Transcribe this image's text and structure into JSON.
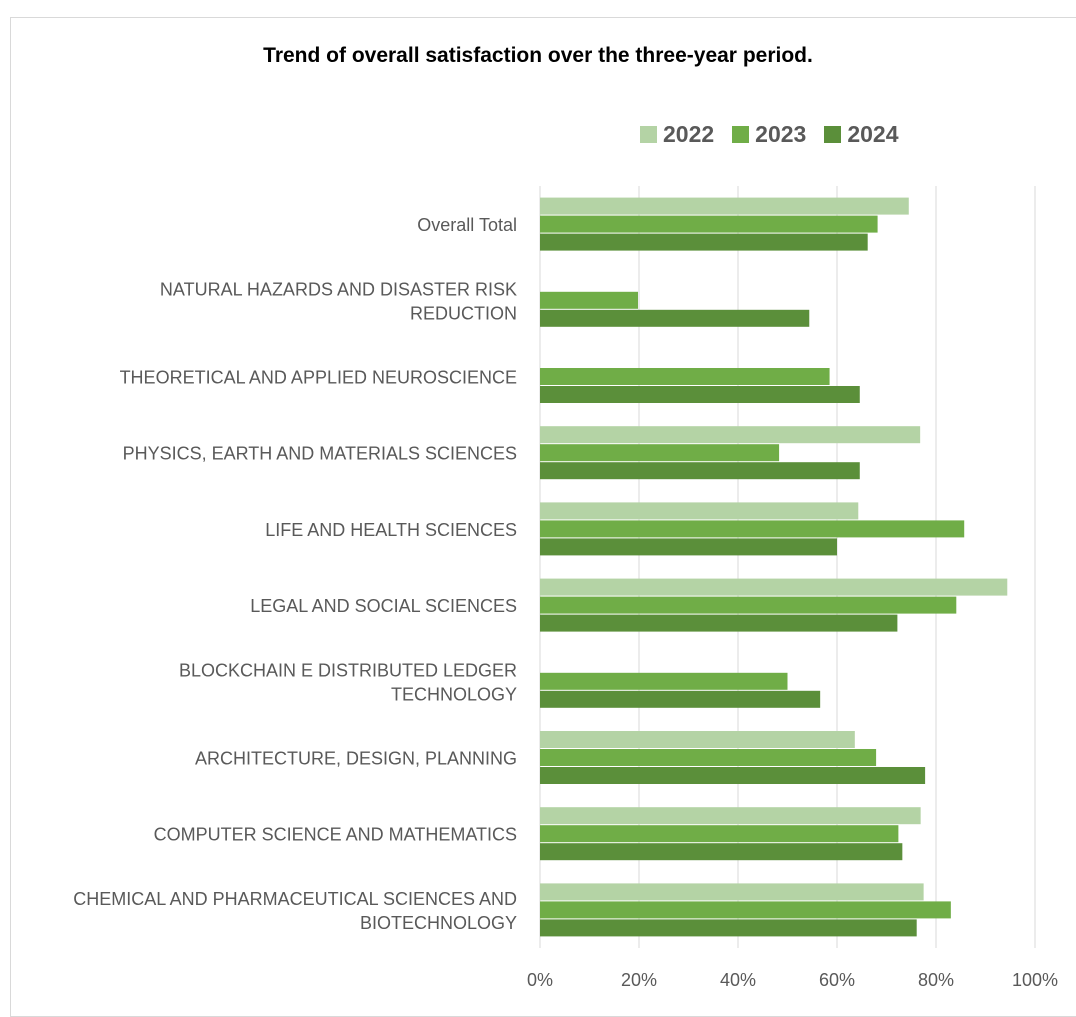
{
  "chart_data": {
    "type": "bar",
    "orientation": "horizontal",
    "title": "Trend of overall satisfaction over the three-year period.",
    "xlabel": "",
    "ylabel": "",
    "xlim": [
      0,
      100
    ],
    "x_ticks": [
      "0%",
      "20%",
      "40%",
      "60%",
      "80%",
      "100%"
    ],
    "grid": true,
    "legend_position": "top-right",
    "categories": [
      "Overall Total",
      "NATURAL HAZARDS AND DISASTER RISK REDUCTION",
      "THEORETICAL AND APPLIED NEUROSCIENCE",
      "PHYSICS, EARTH AND MATERIALS SCIENCES",
      "LIFE AND HEALTH SCIENCES",
      "LEGAL AND SOCIAL SCIENCES",
      "BLOCKCHAIN E DISTRIBUTED LEDGER TECHNOLOGY",
      "ARCHITECTURE, DESIGN, PLANNING",
      "COMPUTER SCIENCE AND MATHEMATICS",
      "CHEMICAL AND PHARMACEUTICAL SCIENCES AND BIOTECHNOLOGY"
    ],
    "category_lines": [
      [
        "Overall Total"
      ],
      [
        "NATURAL HAZARDS AND DISASTER RISK",
        "REDUCTION"
      ],
      [
        "THEORETICAL AND APPLIED NEUROSCIENCE"
      ],
      [
        "PHYSICS, EARTH AND MATERIALS SCIENCES"
      ],
      [
        "LIFE AND HEALTH SCIENCES"
      ],
      [
        "LEGAL AND SOCIAL SCIENCES"
      ],
      [
        "BLOCKCHAIN E DISTRIBUTED LEDGER",
        "TECHNOLOGY"
      ],
      [
        "ARCHITECTURE, DESIGN, PLANNING"
      ],
      [
        "COMPUTER SCIENCE AND MATHEMATICS"
      ],
      [
        "CHEMICAL AND PHARMACEUTICAL SCIENCES AND",
        "BIOTECHNOLOGY"
      ]
    ],
    "series": [
      {
        "name": "2022",
        "color": "#b4d3a5",
        "values": [
          74.5,
          null,
          null,
          76.8,
          64.3,
          94.4,
          null,
          63.6,
          76.9,
          77.5
        ]
      },
      {
        "name": "2023",
        "color": "#70ad47",
        "values": [
          68.2,
          19.8,
          58.5,
          48.3,
          85.7,
          84.1,
          50.0,
          67.9,
          72.4,
          83.0
        ]
      },
      {
        "name": "2024",
        "color": "#5b8f3a",
        "values": [
          66.2,
          54.4,
          64.6,
          64.6,
          60.0,
          72.2,
          56.6,
          77.8,
          73.2,
          76.1
        ]
      }
    ]
  }
}
